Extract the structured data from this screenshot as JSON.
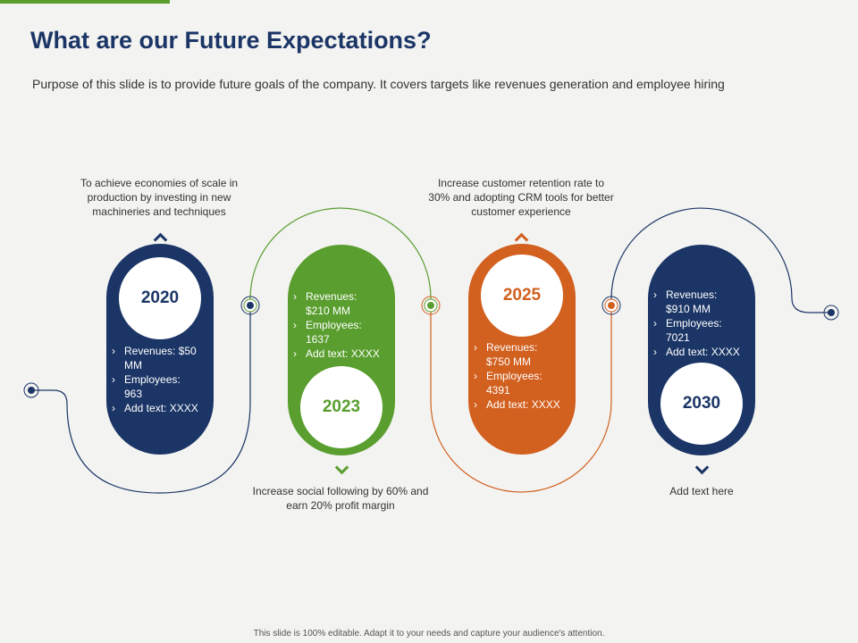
{
  "slide": {
    "title": "What are our Future Expectations?",
    "subtitle": "Purpose of this slide is to provide future goals of the company. It covers targets like revenues generation and employee hiring",
    "footer": "This slide is 100% editable. Adapt it to your needs and capture your audience's attention."
  },
  "colors": {
    "navy": "#1b3566",
    "green": "#5a9e2f",
    "orange": "#d2601f"
  },
  "milestones": [
    {
      "year": "2020",
      "color": "navy",
      "bullets": [
        "Revenues:  $50 MM",
        "Employees: 963",
        "Add text: XXXX"
      ],
      "description": "To achieve economies of scale in production by investing in new machineries and techniques"
    },
    {
      "year": "2023",
      "color": "green",
      "bullets": [
        "Revenues:  $210 MM",
        "Employees: 1637",
        "Add text: XXXX"
      ],
      "description": "Increase social following by 60% and earn 20% profit margin"
    },
    {
      "year": "2025",
      "color": "orange",
      "bullets": [
        "Revenues: $750 MM",
        "Employees: 4391",
        "Add text: XXXX"
      ],
      "description": "Increase customer retention rate to 30% and adopting CRM tools for better customer experience"
    },
    {
      "year": "2030",
      "color": "navy",
      "bullets": [
        "Revenues: $910 MM",
        "Employees: 7021",
        "Add text: XXXX"
      ],
      "description": "Add text here"
    }
  ]
}
